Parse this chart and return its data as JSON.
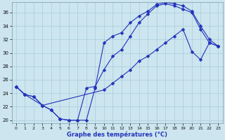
{
  "xlabel": "Graphe des températures (°C)",
  "xlim": [
    -0.5,
    23.5
  ],
  "ylim": [
    19.5,
    37.5
  ],
  "yticks": [
    20,
    22,
    24,
    26,
    28,
    30,
    32,
    34,
    36
  ],
  "xticks": [
    0,
    1,
    2,
    3,
    4,
    5,
    6,
    7,
    8,
    9,
    10,
    11,
    12,
    13,
    14,
    15,
    16,
    17,
    18,
    19,
    20,
    21,
    22,
    23
  ],
  "background_color": "#cce5ee",
  "grid_color": "#aaccdd",
  "line_color": "#2233bb",
  "line1_x": [
    0,
    1,
    2,
    3,
    4,
    5,
    6,
    7,
    8,
    9,
    10,
    11,
    12,
    13,
    14,
    15,
    16,
    17,
    18,
    19,
    20,
    21,
    22,
    23
  ],
  "line1_y": [
    25.0,
    23.8,
    23.5,
    22.2,
    21.5,
    20.2,
    20.0,
    20.0,
    20.0,
    24.8,
    31.5,
    32.5,
    33.0,
    34.5,
    35.5,
    36.2,
    37.2,
    37.5,
    37.3,
    37.0,
    36.2,
    34.0,
    32.0,
    31.0
  ],
  "line2_x": [
    0,
    1,
    2,
    3,
    4,
    5,
    6,
    7,
    8,
    9,
    10,
    11,
    12,
    13,
    14,
    15,
    16,
    17,
    18,
    19,
    20,
    21,
    22,
    23
  ],
  "line2_y": [
    25.0,
    23.8,
    23.5,
    22.2,
    21.5,
    20.2,
    20.0,
    20.0,
    24.8,
    25.0,
    27.5,
    29.5,
    30.5,
    32.5,
    34.5,
    35.8,
    37.0,
    37.3,
    37.0,
    36.5,
    36.0,
    33.5,
    31.5,
    31.0
  ],
  "line3_x": [
    0,
    1,
    3,
    10,
    11,
    12,
    13,
    14,
    15,
    16,
    17,
    18,
    19,
    20,
    21,
    22,
    23
  ],
  "line3_y": [
    25.0,
    23.8,
    22.2,
    24.5,
    25.5,
    26.5,
    27.5,
    28.8,
    29.5,
    30.5,
    31.5,
    32.5,
    33.5,
    30.2,
    29.0,
    31.5,
    31.0
  ]
}
